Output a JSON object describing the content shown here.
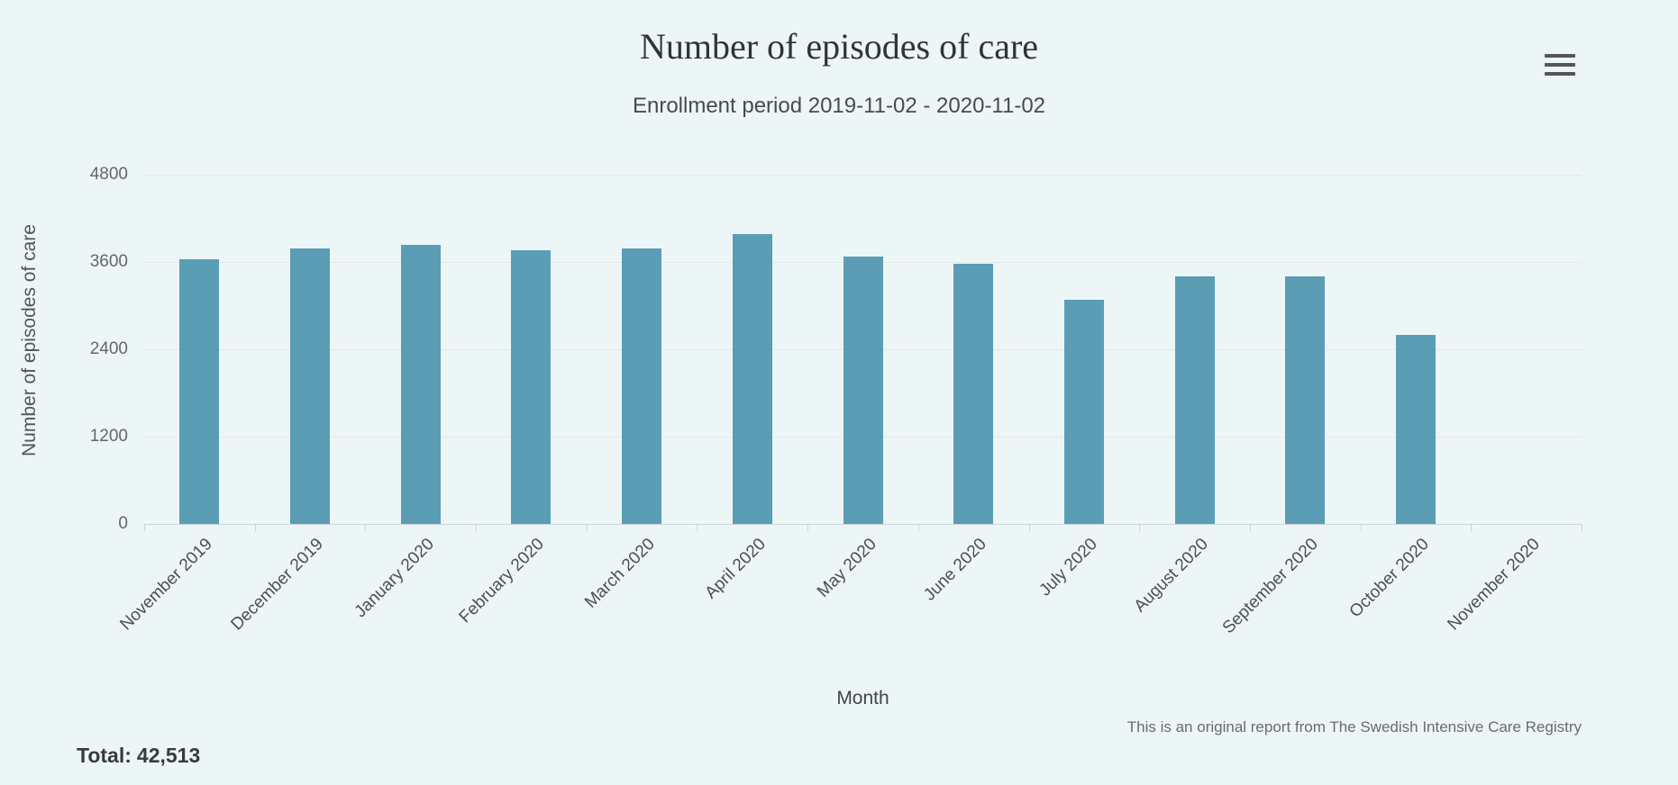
{
  "header": {
    "title": "Number of episodes of care",
    "subtitle": "Enrollment period 2019-11-02 - 2020-11-02"
  },
  "chart_data": {
    "type": "bar",
    "title": "Number of episodes of care",
    "subtitle": "Enrollment period 2019-11-02 - 2020-11-02",
    "xlabel": "Month",
    "ylabel": "Number of episodes of care",
    "ylim": [
      0,
      4800
    ],
    "yticks": [
      0,
      1200,
      2400,
      3600,
      4800
    ],
    "grid": true,
    "legend": "none",
    "bar_color": "#5b9db5",
    "categories": [
      "November 2019",
      "December 2019",
      "January 2020",
      "February 2020",
      "March 2020",
      "April 2020",
      "May 2020",
      "June 2020",
      "July 2020",
      "August 2020",
      "September 2020",
      "October 2020",
      "November 2020"
    ],
    "values": [
      3640,
      3790,
      3830,
      3760,
      3790,
      3980,
      3670,
      3570,
      3080,
      3400,
      3400,
      2603,
      0
    ]
  },
  "footer": {
    "credits": "This is an original report from The Swedish Intensive Care Registry",
    "total_label": "Total:",
    "total_value": "42,513"
  }
}
